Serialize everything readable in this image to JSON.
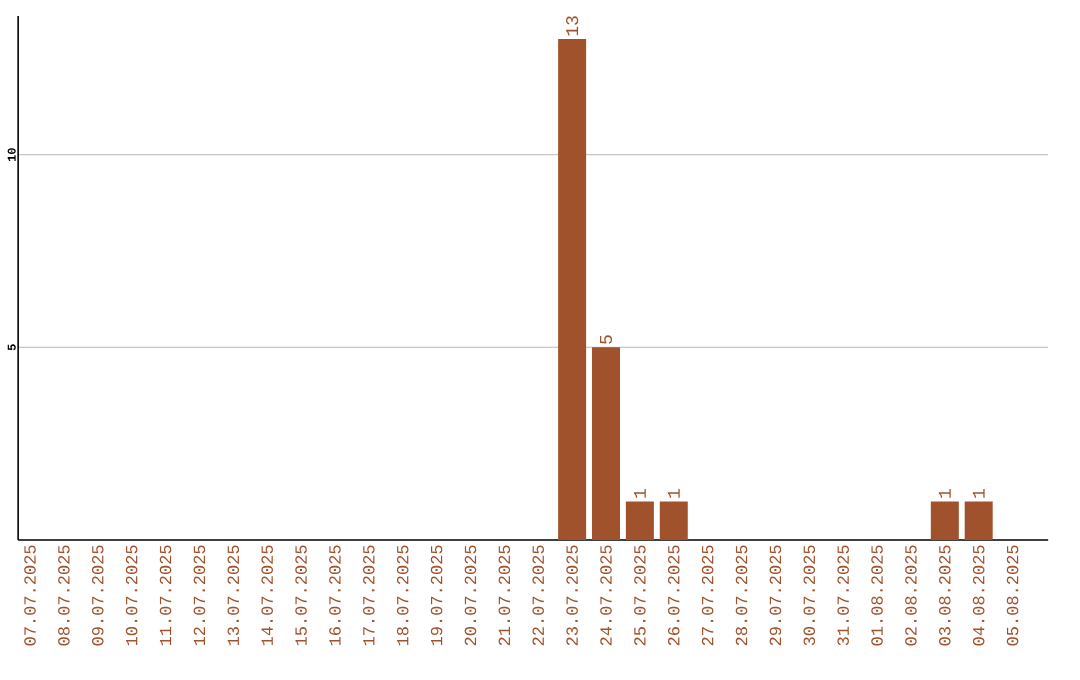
{
  "chart_data": {
    "type": "bar",
    "categories": [
      "07.07.2025",
      "08.07.2025",
      "09.07.2025",
      "10.07.2025",
      "11.07.2025",
      "12.07.2025",
      "13.07.2025",
      "14.07.2025",
      "15.07.2025",
      "16.07.2025",
      "17.07.2025",
      "18.07.2025",
      "19.07.2025",
      "20.07.2025",
      "21.07.2025",
      "22.07.2025",
      "23.07.2025",
      "24.07.2025",
      "25.07.2025",
      "26.07.2025",
      "27.07.2025",
      "28.07.2025",
      "29.07.2025",
      "30.07.2025",
      "31.07.2025",
      "01.08.2025",
      "02.08.2025",
      "03.08.2025",
      "04.08.2025",
      "05.08.2025"
    ],
    "values": [
      0,
      0,
      0,
      0,
      0,
      0,
      0,
      0,
      0,
      0,
      0,
      0,
      0,
      0,
      0,
      0,
      13,
      5,
      1,
      1,
      0,
      0,
      0,
      0,
      0,
      0,
      0,
      1,
      1,
      0
    ],
    "value_labels": [
      null,
      null,
      null,
      null,
      null,
      null,
      null,
      null,
      null,
      null,
      null,
      null,
      null,
      null,
      null,
      null,
      "13",
      "5",
      "1",
      "1",
      null,
      null,
      null,
      null,
      null,
      null,
      null,
      "1",
      "1",
      null
    ],
    "color": "#a0522d",
    "ylim": [
      0,
      13.6
    ],
    "yticks": [
      5,
      10
    ],
    "grid": "y"
  }
}
